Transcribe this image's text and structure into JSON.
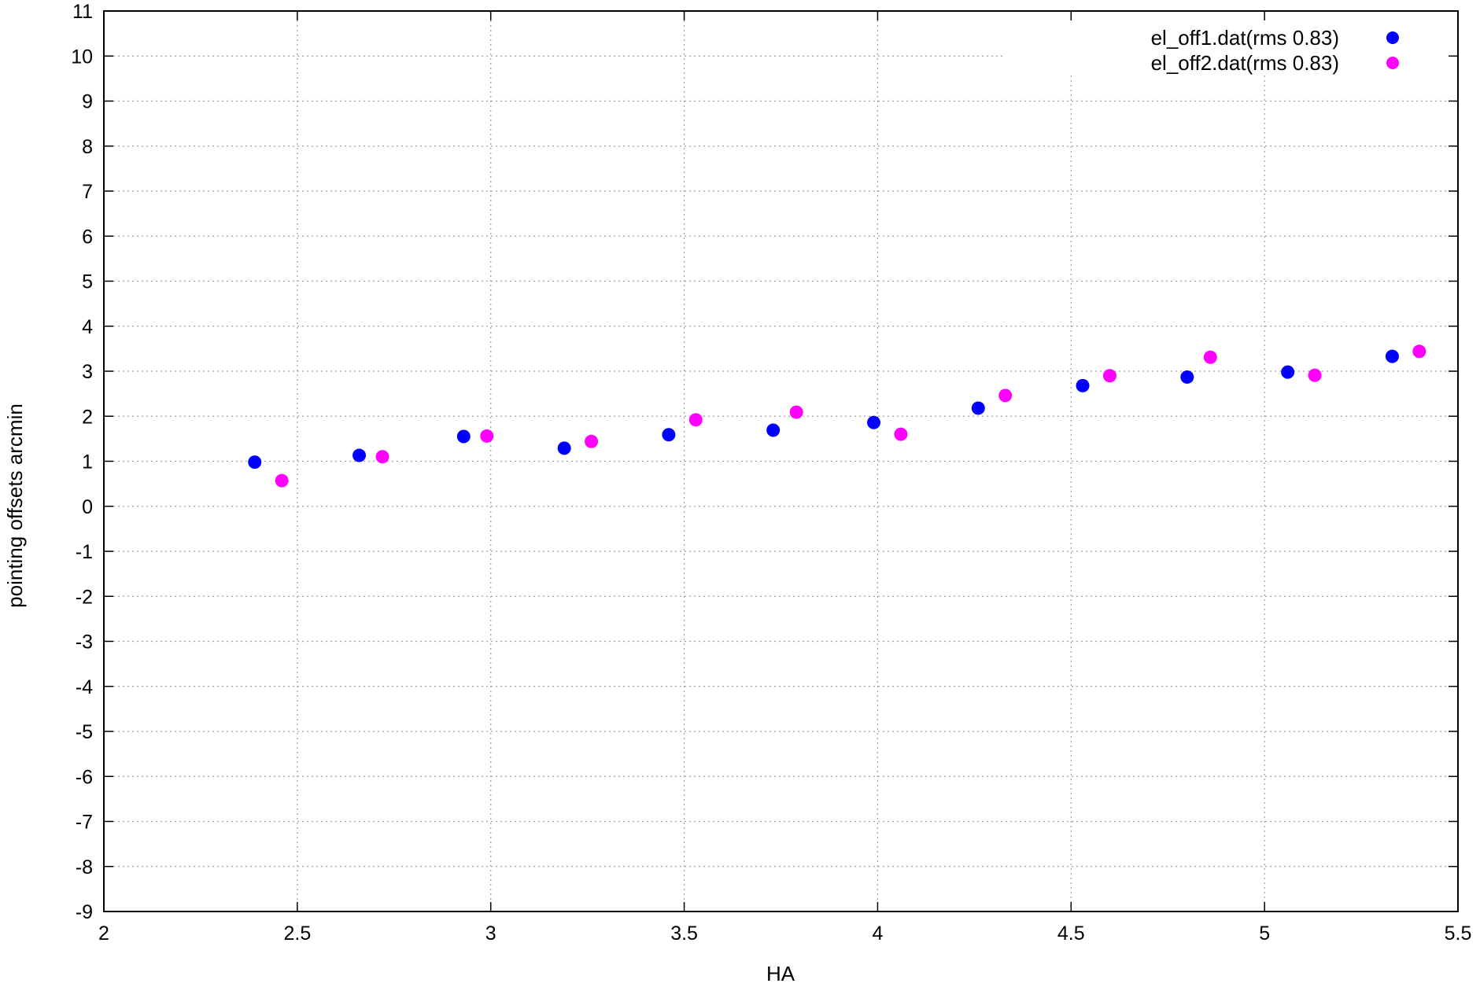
{
  "chart_data": {
    "type": "scatter",
    "title": "",
    "xlabel": "HA",
    "ylabel": "pointing offsets arcmin",
    "xlim": [
      2,
      5.5
    ],
    "ylim": [
      -9,
      11
    ],
    "xticks": [
      2,
      2.5,
      3,
      3.5,
      4,
      4.5,
      5,
      5.5
    ],
    "xtick_labels": [
      "2",
      "2.5",
      "3",
      "3.5",
      "4",
      "4.5",
      "5",
      "5.5"
    ],
    "yticks": [
      -9,
      -8,
      -7,
      -6,
      -5,
      -4,
      -3,
      -2,
      -1,
      0,
      1,
      2,
      3,
      4,
      5,
      6,
      7,
      8,
      9,
      10,
      11
    ],
    "ytick_labels": [
      "-9",
      "-8",
      "-7",
      "-6",
      "-5",
      "-4",
      "-3",
      "-2",
      "-1",
      "0",
      "1",
      "2",
      "3",
      "4",
      "5",
      "6",
      "7",
      "8",
      "9",
      "10",
      "11"
    ],
    "grid": true,
    "legend_position": "top-right",
    "series": [
      {
        "name": "el_off1.dat(rms  0.83)",
        "color": "#0000ff",
        "x": [
          2.39,
          2.66,
          2.93,
          3.19,
          3.46,
          3.73,
          3.99,
          4.26,
          4.53,
          4.8,
          5.06,
          5.33
        ],
        "y": [
          0.98,
          1.13,
          1.55,
          1.29,
          1.59,
          1.69,
          1.86,
          2.18,
          2.68,
          2.87,
          2.98,
          3.33
        ]
      },
      {
        "name": "el_off2.dat(rms  0.83)",
        "color": "#ff00ff",
        "x": [
          2.46,
          2.72,
          2.99,
          3.26,
          3.53,
          3.79,
          4.06,
          4.33,
          4.6,
          4.86,
          5.13,
          5.4
        ],
        "y": [
          0.57,
          1.1,
          1.56,
          1.44,
          1.92,
          2.09,
          1.6,
          2.46,
          2.9,
          3.31,
          2.91,
          3.44
        ]
      }
    ]
  }
}
